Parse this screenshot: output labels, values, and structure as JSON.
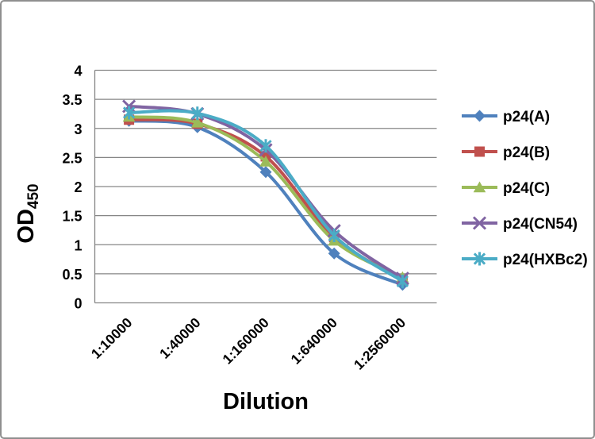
{
  "chart_data": {
    "type": "line",
    "title": "",
    "xlabel": "Dilution",
    "ylabel": "OD",
    "ylabel_subscript": "450",
    "categories": [
      "1:10000",
      "1:40000",
      "1:160000",
      "1:640000",
      "1:2560000"
    ],
    "series": [
      {
        "name": "p24(A)",
        "color": "#4f81bd",
        "marker": "diamond",
        "values": [
          3.13,
          3.02,
          2.25,
          0.85,
          0.31
        ]
      },
      {
        "name": "p24(B)",
        "color": "#c0504d",
        "marker": "square",
        "values": [
          3.15,
          3.08,
          2.52,
          1.13,
          0.4
        ]
      },
      {
        "name": "p24(C)",
        "color": "#9bbb59",
        "marker": "triangle",
        "values": [
          3.2,
          3.1,
          2.43,
          1.07,
          0.44
        ]
      },
      {
        "name": "p24(CN54)",
        "color": "#8064a2",
        "marker": "x",
        "values": [
          3.38,
          3.25,
          2.63,
          1.24,
          0.42
        ]
      },
      {
        "name": "p24(HXBc2)",
        "color": "#4bacc6",
        "marker": "asterisk",
        "values": [
          3.27,
          3.26,
          2.7,
          1.16,
          0.37
        ]
      }
    ],
    "y_axis": {
      "min": 0,
      "max": 4,
      "step": 0.5,
      "tick_labels": [
        "0",
        "0.5",
        "1",
        "1.5",
        "2",
        "2.5",
        "3",
        "3.5",
        "4"
      ]
    },
    "legend_position": "right",
    "grid": true,
    "smooth_lines": true
  },
  "styling": {
    "background": "#ffffff",
    "frame_border_color": "#8f8f8f",
    "gridline_color": "#868686",
    "axis_color": "#868686",
    "text_color": "#000000"
  }
}
